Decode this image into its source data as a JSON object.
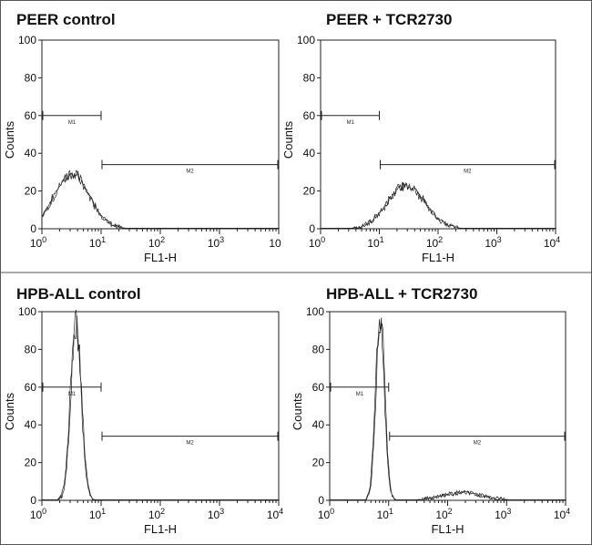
{
  "figure": {
    "frame_color": "#555555",
    "line_color": "#222222"
  },
  "chart_data": [
    {
      "type": "histogram",
      "title": "PEER control",
      "xlabel": "FL1-H",
      "ylabel": "Counts",
      "xscale": "log",
      "xlim": [
        1,
        10000
      ],
      "ylim": [
        0,
        100
      ],
      "x_tick_labels": [
        "10",
        "10",
        "10",
        "10",
        "10"
      ],
      "x_tick_exponents": [
        "0",
        "1",
        "2",
        "3",
        ""
      ],
      "y_tick_labels": [
        "0",
        "20",
        "40",
        "60",
        "80",
        "100"
      ],
      "gates": [
        {
          "name": "M1",
          "x_range": [
            1,
            10
          ],
          "y": 60
        },
        {
          "name": "M2",
          "x_range": [
            10,
            10000
          ],
          "y": 34
        }
      ],
      "peak": {
        "center_log10": 0.5,
        "sigma_log10": 0.3,
        "height": 29
      },
      "series": [
        {
          "x": [
            1,
            1.58,
            2,
            2.5,
            3.16,
            4,
            5,
            6.3,
            7.9,
            10,
            12.6
          ],
          "y": [
            8,
            18,
            24,
            28,
            29,
            27,
            22,
            14,
            7,
            3,
            1
          ]
        }
      ]
    },
    {
      "type": "histogram",
      "title": "PEER + TCR2730",
      "xlabel": "FL1-H",
      "ylabel": "Counts",
      "xscale": "log",
      "xlim": [
        1,
        10000
      ],
      "ylim": [
        0,
        100
      ],
      "x_tick_labels": [
        "10",
        "10",
        "10",
        "10",
        "10"
      ],
      "x_tick_exponents": [
        "0",
        "1",
        "2",
        "3",
        "4"
      ],
      "y_tick_labels": [
        "0",
        "20",
        "40",
        "60",
        "80",
        "100"
      ],
      "gates": [
        {
          "name": "M1",
          "x_range": [
            1,
            10
          ],
          "y": 60
        },
        {
          "name": "M2",
          "x_range": [
            10,
            10000
          ],
          "y": 34
        }
      ],
      "peak": {
        "center_log10": 1.45,
        "sigma_log10": 0.32,
        "height": 23
      },
      "series": [
        {
          "x": [
            3.16,
            6.3,
            10,
            15.8,
            20,
            28,
            40,
            56,
            79,
            126
          ],
          "y": [
            1,
            5,
            11,
            18,
            21,
            23,
            20,
            13,
            6,
            1
          ]
        }
      ]
    },
    {
      "type": "histogram",
      "title": "HPB-ALL control",
      "xlabel": "FL1-H",
      "ylabel": "Counts",
      "xscale": "log",
      "xlim": [
        1,
        10000
      ],
      "ylim": [
        0,
        100
      ],
      "x_tick_labels": [
        "10",
        "10",
        "10",
        "10",
        "10"
      ],
      "x_tick_exponents": [
        "0",
        "1",
        "2",
        "3",
        "4"
      ],
      "y_tick_labels": [
        "0",
        "20",
        "40",
        "60",
        "80",
        "100"
      ],
      "gates": [
        {
          "name": "M1",
          "x_range": [
            1,
            10
          ],
          "y": 60
        },
        {
          "name": "M2",
          "x_range": [
            10,
            10000
          ],
          "y": 34
        }
      ],
      "peak": {
        "center_log10": 0.57,
        "sigma_log10": 0.09,
        "height": 95
      },
      "series": [
        {
          "x": [
            1.6,
            2.5,
            3.16,
            3.7,
            4.5,
            5.6,
            7.1,
            10
          ],
          "y": [
            1,
            12,
            62,
            95,
            70,
            22,
            3,
            0
          ]
        }
      ]
    },
    {
      "type": "histogram",
      "title": "HPB-ALL + TCR2730",
      "xlabel": "FL1-H",
      "ylabel": "Counts",
      "xscale": "log",
      "xlim": [
        1,
        10000
      ],
      "ylim": [
        0,
        100
      ],
      "x_tick_labels": [
        "10",
        "10",
        "10",
        "10",
        "10"
      ],
      "x_tick_exponents": [
        "0",
        "1",
        "2",
        "3",
        "4"
      ],
      "y_tick_labels": [
        "0",
        "20",
        "40",
        "60",
        "80",
        "100"
      ],
      "gates": [
        {
          "name": "M1",
          "x_range": [
            1,
            10
          ],
          "y": 60
        },
        {
          "name": "M2",
          "x_range": [
            10,
            10000
          ],
          "y": 34
        }
      ],
      "peak": {
        "center_log10": 0.85,
        "sigma_log10": 0.075,
        "height": 96,
        "tail_center_log10": 2.25,
        "tail_sigma_log10": 0.35,
        "tail_height": 4
      },
      "series": [
        {
          "x": [
            3.5,
            5,
            6.3,
            7.1,
            8,
            10,
            12.6,
            31.6,
            100,
            178,
            316,
            1000
          ],
          "y": [
            1,
            18,
            75,
            96,
            80,
            25,
            4,
            2,
            3,
            4,
            2,
            0
          ]
        }
      ]
    }
  ]
}
